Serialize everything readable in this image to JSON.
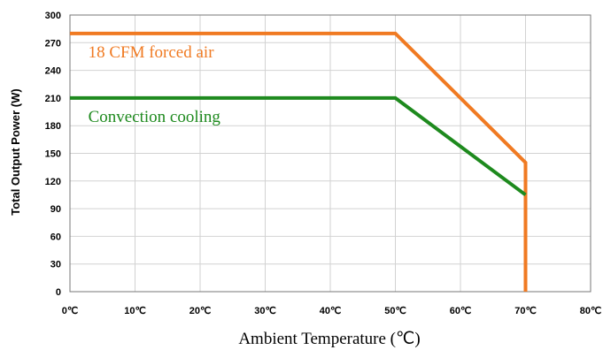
{
  "chart_data": {
    "type": "line",
    "title": "",
    "xlabel": "Ambient Temperature (℃)",
    "ylabel": "Total Output Power (W)",
    "xlim": [
      0,
      80
    ],
    "ylim": [
      0,
      300
    ],
    "x_ticks": [
      {
        "value": 0,
        "label": "0℃"
      },
      {
        "value": 10,
        "label": "10℃"
      },
      {
        "value": 20,
        "label": "20℃"
      },
      {
        "value": 30,
        "label": "30℃"
      },
      {
        "value": 40,
        "label": "40℃"
      },
      {
        "value": 50,
        "label": "50℃"
      },
      {
        "value": 60,
        "label": "60℃"
      },
      {
        "value": 70,
        "label": "70℃"
      },
      {
        "value": 80,
        "label": "80℃"
      }
    ],
    "y_ticks": [
      {
        "value": 0,
        "label": "0"
      },
      {
        "value": 30,
        "label": "30"
      },
      {
        "value": 60,
        "label": "60"
      },
      {
        "value": 90,
        "label": "90"
      },
      {
        "value": 120,
        "label": "120"
      },
      {
        "value": 150,
        "label": "150"
      },
      {
        "value": 180,
        "label": "180"
      },
      {
        "value": 210,
        "label": "210"
      },
      {
        "value": 240,
        "label": "240"
      },
      {
        "value": 270,
        "label": "270"
      },
      {
        "value": 300,
        "label": "300"
      }
    ],
    "grid": true,
    "series": [
      {
        "name": "18 CFM forced air",
        "color": "#f07a22",
        "points": [
          [
            0,
            280
          ],
          [
            50,
            280
          ],
          [
            70,
            140
          ],
          [
            70,
            0
          ]
        ]
      },
      {
        "name": "Convection cooling",
        "color": "#1e8a1e",
        "points": [
          [
            0,
            210
          ],
          [
            50,
            210
          ],
          [
            70,
            105
          ]
        ]
      }
    ]
  }
}
